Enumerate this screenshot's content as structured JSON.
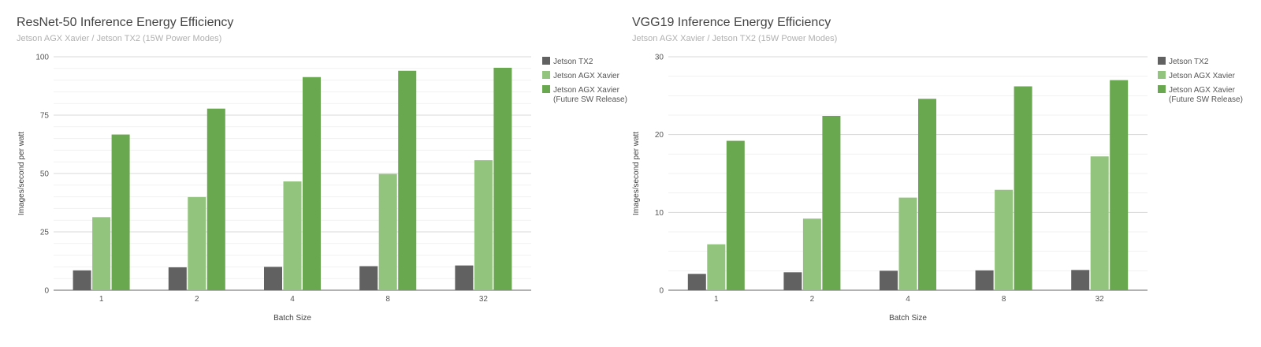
{
  "chart_data": [
    {
      "type": "bar",
      "title": "ResNet-50 Inference Energy Efficiency",
      "subtitle": "Jetson AGX Xavier / Jetson TX2  (15W Power Modes)",
      "xlabel": "Batch Size",
      "ylabel": "Images/second per watt",
      "ylim": [
        0,
        100
      ],
      "yticks": [
        "0",
        "25",
        "50",
        "75",
        "100"
      ],
      "ytick_values": [
        0,
        25,
        50,
        75,
        100
      ],
      "minor_grid_step": 5,
      "grid": true,
      "legend_position": "right",
      "categories": [
        "1",
        "2",
        "4",
        "8",
        "32"
      ],
      "series": [
        {
          "name": "Jetson TX2",
          "color": "#616161",
          "values": [
            8.5,
            9.8,
            10.0,
            10.3,
            10.6
          ]
        },
        {
          "name": "Jetson AGX Xavier",
          "color": "#93c47d",
          "values": [
            31.3,
            39.9,
            46.6,
            49.8,
            55.7
          ]
        },
        {
          "name": "Jetson AGX Xavier (Future SW Release)",
          "legend_lines": [
            "Jetson AGX Xavier",
            "(Future SW Release)"
          ],
          "color": "#6aa84f",
          "values": [
            66.7,
            77.8,
            91.3,
            94.0,
            95.3
          ]
        }
      ]
    },
    {
      "type": "bar",
      "title": "VGG19 Inference Energy Efficiency",
      "subtitle": "Jetson AGX Xavier / Jetson TX2  (15W Power Modes)",
      "xlabel": "Batch Size",
      "ylabel": "Images/second per watt",
      "ylim": [
        0,
        30
      ],
      "yticks": [
        "0",
        "10",
        "20",
        "30"
      ],
      "ytick_values": [
        0,
        10,
        20,
        30
      ],
      "minor_grid_step": 2.5,
      "grid": true,
      "legend_position": "right",
      "categories": [
        "1",
        "2",
        "4",
        "8",
        "32"
      ],
      "series": [
        {
          "name": "Jetson TX2",
          "color": "#616161",
          "values": [
            2.1,
            2.3,
            2.5,
            2.55,
            2.6
          ]
        },
        {
          "name": "Jetson AGX Xavier",
          "color": "#93c47d",
          "values": [
            5.9,
            9.2,
            11.9,
            12.9,
            17.2
          ]
        },
        {
          "name": "Jetson AGX Xavier (Future SW Release)",
          "legend_lines": [
            "Jetson AGX Xavier",
            "(Future SW Release)"
          ],
          "color": "#6aa84f",
          "values": [
            19.2,
            22.4,
            24.6,
            26.2,
            27.0
          ]
        }
      ]
    }
  ]
}
